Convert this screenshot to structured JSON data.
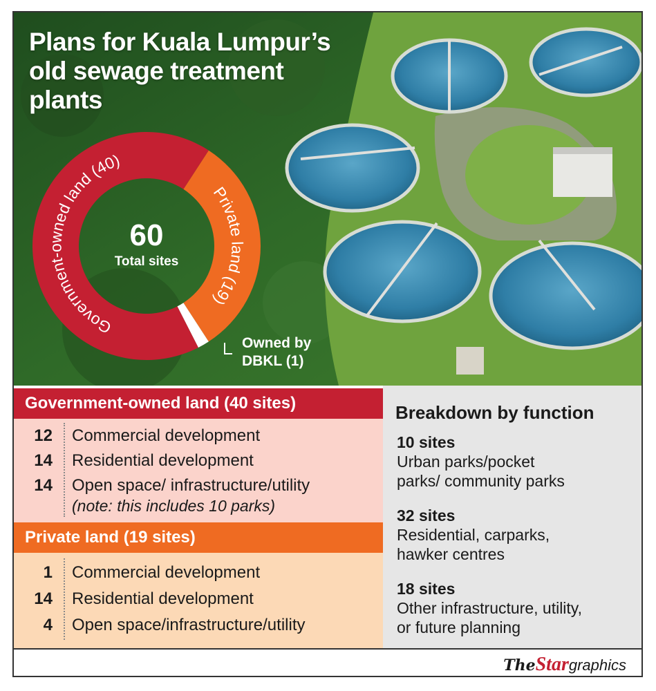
{
  "title": "Plans for Kuala Lumpur’s old sewage treatment plants",
  "colors": {
    "government": "#c42032",
    "private": "#ef6b22",
    "dbkl": "#ffffff",
    "gov_band": "#fbd3cb",
    "priv_band": "#fcd9b6",
    "function_panel": "#e6e6e6"
  },
  "chart_data": {
    "type": "pie",
    "title": "Plans for Kuala Lumpur’s old sewage treatment plants",
    "center": {
      "value": "60",
      "label": "Total sites"
    },
    "slices": [
      {
        "label": "Government-owned land (40)",
        "value": 40,
        "color": "#c42032"
      },
      {
        "label": "Private land (19)",
        "value": 19,
        "color": "#ef6b22"
      },
      {
        "label": "Owned by DBKL (1)",
        "value": 1,
        "color": "#ffffff"
      }
    ],
    "dbkl_label_line1": "Owned by",
    "dbkl_label_line2": "DBKL (1)"
  },
  "government": {
    "heading": "Government-owned land (40 sites)",
    "rows": [
      {
        "count": "12",
        "label": "Commercial development"
      },
      {
        "count": "14",
        "label": "Residential development"
      },
      {
        "count": "14",
        "label": "Open space/ infrastructure/utility"
      }
    ],
    "note": "(note: this includes 10 parks)"
  },
  "private": {
    "heading": "Private land (19 sites)",
    "rows": [
      {
        "count": "1",
        "label": "Commercial development"
      },
      {
        "count": "14",
        "label": "Residential development"
      },
      {
        "count": "4",
        "label": "Open space/infrastructure/utility"
      }
    ]
  },
  "function": {
    "heading": "Breakdown by function",
    "blocks": [
      {
        "count": "10 sites",
        "line1": "Urban parks/pocket",
        "line2": "parks/ community parks"
      },
      {
        "count": "32 sites",
        "line1": "Residential, carparks,",
        "line2": "hawker centres"
      },
      {
        "count": "18 sites",
        "line1": "Other infrastructure, utility,",
        "line2": "or future planning"
      }
    ]
  },
  "logo": {
    "the": "The",
    "star": "Star",
    "graphics": "graphics"
  }
}
